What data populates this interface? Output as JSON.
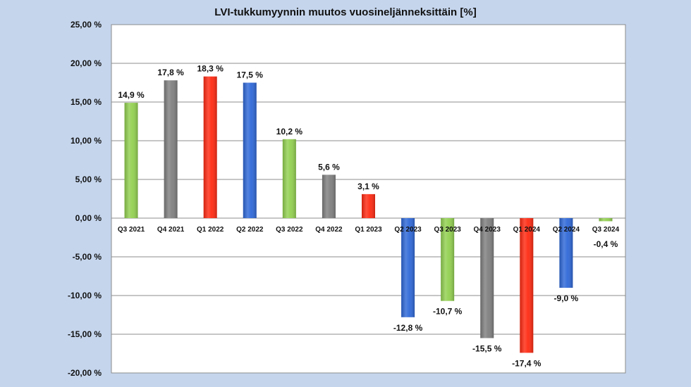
{
  "chart_data": {
    "type": "bar",
    "title": "LVI-tukkumyynnin muutos vuosineljänneksittäin [%]",
    "xlabel": "",
    "ylabel": "",
    "ylim": [
      -20,
      25
    ],
    "yticks": [
      25,
      20,
      15,
      10,
      5,
      0,
      -5,
      -10,
      -15,
      -20
    ],
    "ytick_labels": [
      "25,00 %",
      "20,00 %",
      "15,00 %",
      "10,00 %",
      "5,00 %",
      "0,00 %",
      "-5,00 %",
      "-10,00 %",
      "-15,00 %",
      "-20,00 %"
    ],
    "grid": true,
    "categories": [
      "Q3 2021",
      "Q4 2021",
      "Q1 2022",
      "Q2 2022",
      "Q3 2022",
      "Q4 2022",
      "Q1 2023",
      "Q2 2023",
      "Q3 2023",
      "Q4 2023",
      "Q1 2024",
      "Q2 2024",
      "Q3 2024"
    ],
    "values": [
      14.9,
      17.8,
      18.3,
      17.5,
      10.2,
      5.6,
      3.1,
      -12.8,
      -10.7,
      -15.5,
      -17.4,
      -9.0,
      -0.4
    ],
    "value_labels": [
      "14,9 %",
      "17,8 %",
      "18,3 %",
      "17,5 %",
      "10,2 %",
      "5,6 %",
      "3,1 %",
      "-12,8 %",
      "-10,7 %",
      "-15,5 %",
      "-17,4 %",
      "-9,0 %",
      "-0,4 %"
    ],
    "bar_colors": [
      "#92d050",
      "#7f7f7f",
      "#ff2a12",
      "#2f68d8",
      "#92d050",
      "#7f7f7f",
      "#ff2a12",
      "#2f68d8",
      "#92d050",
      "#7f7f7f",
      "#ff2a12",
      "#2f68d8",
      "#92d050"
    ]
  },
  "colors": {
    "background": "#c5d5ec",
    "plot_background": "#ffffff",
    "gridline": "#8c8c8c"
  }
}
